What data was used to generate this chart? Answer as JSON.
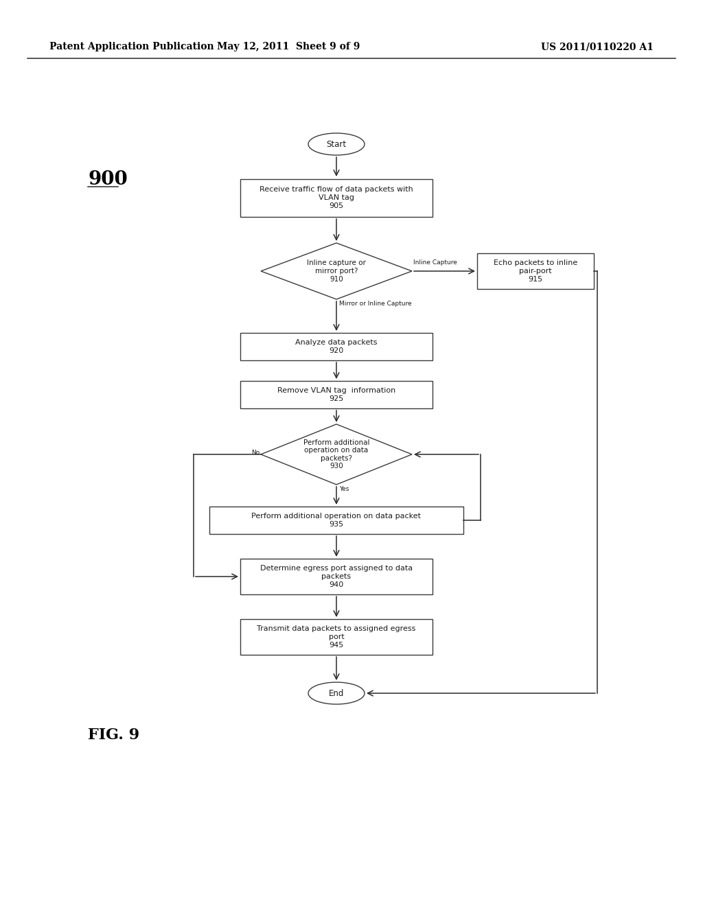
{
  "bg_color": "#ffffff",
  "text_color": "#000000",
  "header_left": "Patent Application Publication",
  "header_center": "May 12, 2011  Sheet 9 of 9",
  "header_right": "US 2011/0110220 A1",
  "fig_label": "FIG. 9",
  "diagram_label": "900"
}
